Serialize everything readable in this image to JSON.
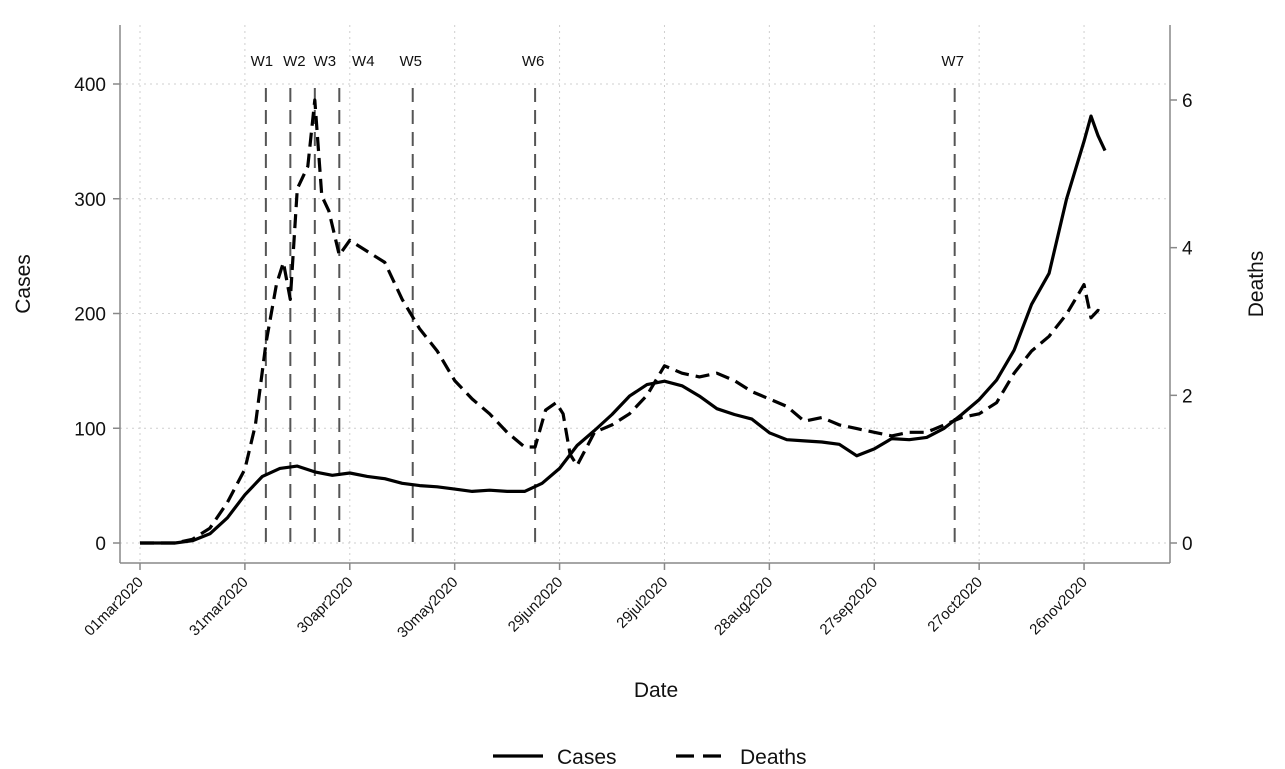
{
  "chart_data": {
    "type": "line",
    "xlabel": "Date",
    "ylabel_left": "Cases",
    "ylabel_right": "Deaths",
    "x_ticks": [
      "01mar2020",
      "31mar2020",
      "30apr2020",
      "30may2020",
      "29jun2020",
      "29jul2020",
      "28aug2020",
      "27sep2020",
      "27oct2020",
      "26nov2020"
    ],
    "y_left_ticks": [
      "0",
      "100",
      "200",
      "300",
      "400"
    ],
    "y_right_ticks": [
      "0",
      "2",
      "4",
      "6"
    ],
    "ylim_left": [
      0,
      450
    ],
    "ylim_right": [
      0,
      7
    ],
    "xlim_days": [
      0,
      284
    ],
    "grid": true,
    "legend_position": "bottom",
    "vertical_markers": [
      {
        "label": "W1",
        "date": "06apr2020"
      },
      {
        "label": "W2",
        "date": "13apr2020"
      },
      {
        "label": "W3",
        "date": "20apr2020"
      },
      {
        "label": "W4",
        "date": "27apr2020"
      },
      {
        "label": "W5",
        "date": "18may2020"
      },
      {
        "label": "W6",
        "date": "22jun2020"
      },
      {
        "label": "W7",
        "date": "20oct2020"
      }
    ],
    "series": [
      {
        "name": "Cases",
        "axis": "left",
        "style": "solid",
        "color": "#000000",
        "x": [
          "01mar2020",
          "11mar2020",
          "16mar2020",
          "21mar2020",
          "26mar2020",
          "31mar2020",
          "05apr2020",
          "10apr2020",
          "15apr2020",
          "20apr2020",
          "25apr2020",
          "30apr2020",
          "05may2020",
          "10may2020",
          "15may2020",
          "20may2020",
          "25may2020",
          "30may2020",
          "04jun2020",
          "09jun2020",
          "14jun2020",
          "19jun2020",
          "24jun2020",
          "29jun2020",
          "04jul2020",
          "09jul2020",
          "14jul2020",
          "19jul2020",
          "24jul2020",
          "29jul2020",
          "03aug2020",
          "08aug2020",
          "13aug2020",
          "18aug2020",
          "23aug2020",
          "28aug2020",
          "02sep2020",
          "07sep2020",
          "12sep2020",
          "17sep2020",
          "22sep2020",
          "27sep2020",
          "02oct2020",
          "07oct2020",
          "12oct2020",
          "17oct2020",
          "22oct2020",
          "27oct2020",
          "01nov2020",
          "06nov2020",
          "11nov2020",
          "16nov2020",
          "21nov2020",
          "26nov2020",
          "28nov2020",
          "30nov2020",
          "02dec2020"
        ],
        "y": [
          0,
          0,
          2,
          8,
          22,
          42,
          58,
          65,
          67,
          62,
          59,
          61,
          58,
          56,
          52,
          50,
          49,
          47,
          45,
          46,
          45,
          45,
          52,
          65,
          85,
          98,
          112,
          128,
          138,
          141,
          137,
          128,
          117,
          112,
          108,
          96,
          90,
          89,
          88,
          86,
          76,
          82,
          91,
          90,
          92,
          100,
          112,
          125,
          142,
          168,
          208,
          235,
          300,
          350,
          372,
          355,
          342
        ]
      },
      {
        "name": "Deaths",
        "axis": "right",
        "style": "dashed",
        "color": "#000000",
        "x": [
          "01mar2020",
          "11mar2020",
          "16mar2020",
          "21mar2020",
          "26mar2020",
          "31mar2020",
          "03apr2020",
          "06apr2020",
          "09apr2020",
          "11apr2020",
          "13apr2020",
          "15apr2020",
          "18apr2020",
          "20apr2020",
          "22apr2020",
          "24apr2020",
          "27apr2020",
          "30apr2020",
          "05may2020",
          "10may2020",
          "15may2020",
          "20may2020",
          "25may2020",
          "30may2020",
          "04jun2020",
          "09jun2020",
          "14jun2020",
          "19jun2020",
          "22jun2020",
          "25jun2020",
          "28jun2020",
          "30jun2020",
          "02jul2020",
          "04jul2020",
          "09jul2020",
          "14jul2020",
          "19jul2020",
          "24jul2020",
          "29jul2020",
          "03aug2020",
          "08aug2020",
          "13aug2020",
          "18aug2020",
          "23aug2020",
          "28aug2020",
          "02sep2020",
          "07sep2020",
          "12sep2020",
          "17sep2020",
          "22sep2020",
          "27sep2020",
          "02oct2020",
          "07oct2020",
          "12oct2020",
          "17oct2020",
          "22oct2020",
          "27oct2020",
          "01nov2020",
          "06nov2020",
          "11nov2020",
          "16nov2020",
          "21nov2020",
          "26nov2020",
          "28nov2020",
          "30nov2020",
          "02dec2020"
        ],
        "y": [
          0,
          0,
          0.05,
          0.2,
          0.55,
          1.0,
          1.6,
          2.7,
          3.5,
          3.8,
          3.3,
          4.8,
          5.1,
          6.0,
          4.7,
          4.5,
          3.9,
          4.1,
          3.95,
          3.8,
          3.3,
          2.9,
          2.6,
          2.2,
          1.95,
          1.75,
          1.5,
          1.3,
          1.3,
          1.8,
          1.9,
          1.75,
          1.2,
          1.05,
          1.5,
          1.6,
          1.75,
          2.0,
          2.4,
          2.3,
          2.25,
          2.3,
          2.2,
          2.05,
          1.95,
          1.85,
          1.65,
          1.7,
          1.6,
          1.55,
          1.5,
          1.45,
          1.5,
          1.5,
          1.6,
          1.7,
          1.75,
          1.9,
          2.3,
          2.6,
          2.8,
          3.1,
          3.5,
          3.05,
          3.15,
          3.1
        ]
      }
    ]
  }
}
